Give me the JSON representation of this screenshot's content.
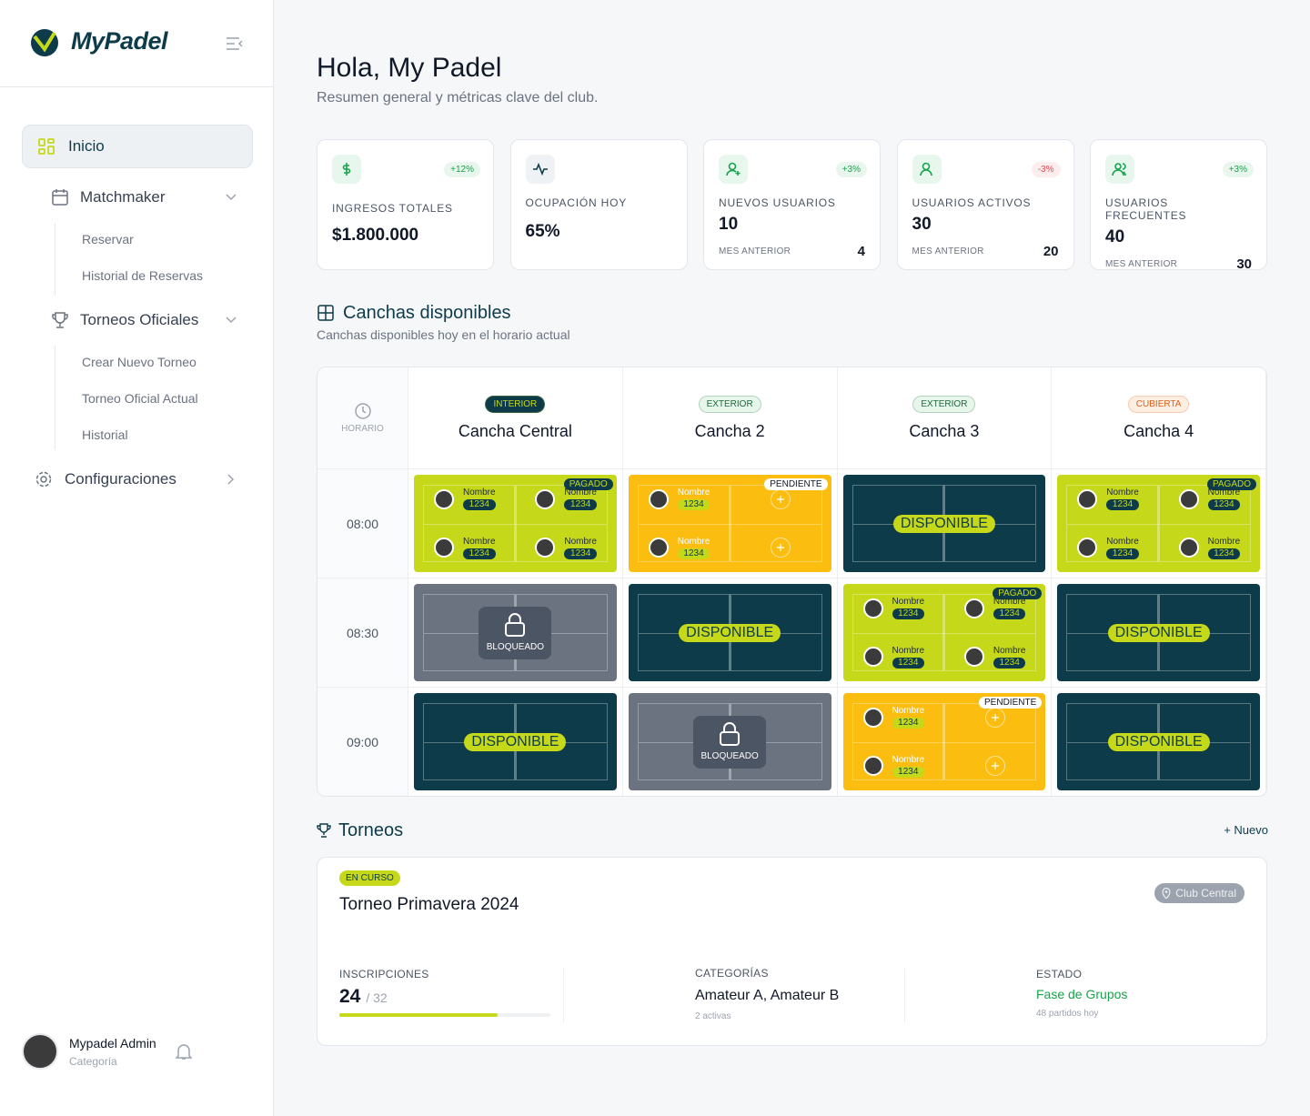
{
  "sidebar": {
    "brand": "MyPadel",
    "nav": [
      {
        "label": "Inicio"
      },
      {
        "label": "Matchmaker",
        "children": [
          "Reservar",
          "Historial de Reservas"
        ]
      },
      {
        "label": "Torneos Oficiales",
        "children": [
          "Crear Nuevo Torneo",
          "Torneo Oficial Actual",
          "Historial"
        ]
      },
      {
        "label": "Configuraciones"
      }
    ],
    "user": {
      "name": "Mypadel Admin",
      "role": "Categoría"
    }
  },
  "header": {
    "title": "Hola, My Padel",
    "subtitle": "Resumen general y métricas clave del club."
  },
  "stats": [
    {
      "label": "INGRESOS TOTALES",
      "value": "$1.800.000",
      "trend": "+12%",
      "trend_color": "#16a34a"
    },
    {
      "label": "OCUPACIÓN HOY",
      "value": "65%"
    },
    {
      "label": "NUEVOS USUARIOS",
      "value": "10",
      "trend": "+3%",
      "trend_color": "#16a34a",
      "prev_label": "MES ANTERIOR",
      "prev": "4"
    },
    {
      "label": "USUARIOS ACTIVOS",
      "value": "30",
      "trend": "-3%",
      "trend_color": "#e5484d",
      "prev_label": "MES ANTERIOR",
      "prev": "20"
    },
    {
      "label": "USUARIOS FRECUENTES",
      "value": "40",
      "trend": "+3%",
      "trend_color": "#16a34a",
      "prev_label": "MES ANTERIOR",
      "prev": "30"
    }
  ],
  "courts": {
    "title": "Canchas disponibles",
    "subtitle": "Canchas disponibles hoy en el horario actual",
    "time_header": "HORARIO",
    "columns": [
      {
        "tag": "INTERIOR",
        "name": "Cancha Central",
        "tag_color": "#c5d81a",
        "tag_background": "#0d3b4a"
      },
      {
        "tag": "EXTERIOR",
        "name": "Cancha 2",
        "tag_color": "#1a6b3a",
        "tag_background": "#e6f6ea"
      },
      {
        "tag": "EXTERIOR",
        "name": "Cancha 3",
        "tag_color": "#1a6b3a",
        "tag_background": "#e6f6ea"
      },
      {
        "tag": "CUBIERTA",
        "name": "Cancha 4",
        "tag_color": "#d9621a",
        "tag_background": "#fdeee2"
      }
    ],
    "rows": [
      {
        "time": "08:00",
        "slots": [
          {
            "status": "PAGADO",
            "color": "#c5d81a",
            "players": [
              {
                "name": "Nombre",
                "code": "1234"
              },
              {
                "name": "Nombre",
                "code": "1234"
              },
              {
                "name": "Nombre",
                "code": "1234"
              },
              {
                "name": "Nombre",
                "code": "1234"
              }
            ]
          },
          {
            "status": "PENDIENTE",
            "color": "#fbbd0f",
            "players": [
              {
                "name": "Nombre",
                "code": "1234"
              },
              {
                "name": "Nombre",
                "code": "1234"
              }
            ]
          },
          {
            "status": "DISPONIBLE",
            "color": "#0d3b4a"
          },
          {
            "status": "PAGADO",
            "color": "#c5d81a",
            "players": [
              {
                "name": "Nombre",
                "code": "1234"
              },
              {
                "name": "Nombre",
                "code": "1234"
              },
              {
                "name": "Nombre",
                "code": "1234"
              },
              {
                "name": "Nombre",
                "code": "1234"
              }
            ]
          }
        ]
      },
      {
        "time": "08:30",
        "slots": [
          {
            "status": "BLOQUEADO",
            "color": "#6b7280",
            "locked": true
          },
          {
            "status": "DISPONIBLE",
            "color": "#0d3b4a"
          },
          {
            "status": "PAGADO",
            "color": "#c5d81a",
            "players": [
              {
                "name": "Nombre",
                "code": "1234"
              },
              {
                "name": "Nombre",
                "code": "1234"
              },
              {
                "name": "Nombre",
                "code": "1234"
              },
              {
                "name": "Nombre",
                "code": "1234"
              }
            ]
          },
          {
            "status": "DISPONIBLE",
            "color": "#0d3b4a"
          }
        ]
      },
      {
        "time": "09:00",
        "slots": [
          {
            "status": "DISPONIBLE",
            "color": "#0d3b4a"
          },
          {
            "status": "BLOQUEADO",
            "color": "#6b7280",
            "locked": true
          },
          {
            "status": "PENDIENTE",
            "color": "#fbbd0f",
            "players": [
              {
                "name": "Nombre",
                "code": "1234"
              },
              {
                "name": "Nombre",
                "code": "1234"
              }
            ]
          },
          {
            "status": "DISPONIBLE",
            "color": "#0d3b4a"
          }
        ]
      }
    ]
  },
  "tournaments": {
    "title": "Torneos",
    "new": "+ Nuevo",
    "items": [
      {
        "status": "EN CURSO",
        "name": "Torneo Primavera 2024",
        "venue": "Club Central",
        "inscriptions_label": "INSCRIPCIONES",
        "registered": 24,
        "capacity": {
          "value": 32,
          "label": "/ 32"
        },
        "categories_label": "CATEGORÍAS",
        "categories": "Amateur A, Amateur B",
        "categories_note": "2 activas",
        "state_label": "ESTADO",
        "state": "Fase de Grupos",
        "state_note": "48 partidos hoy"
      }
    ]
  }
}
